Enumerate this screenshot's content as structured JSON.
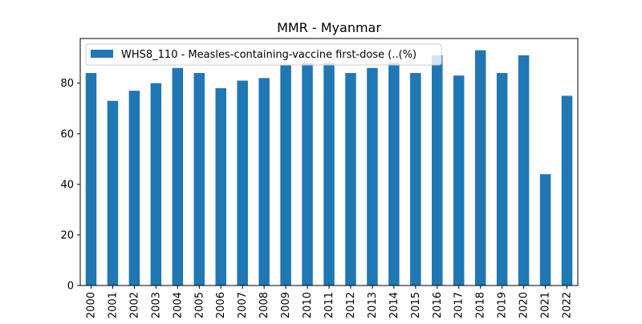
{
  "chart_data": {
    "type": "bar",
    "title": "MMR - Myanmar",
    "xlabel": "",
    "ylabel": "",
    "categories": [
      "2000",
      "2001",
      "2002",
      "2003",
      "2004",
      "2005",
      "2006",
      "2007",
      "2008",
      "2009",
      "2010",
      "2011",
      "2012",
      "2013",
      "2014",
      "2015",
      "2016",
      "2017",
      "2018",
      "2019",
      "2020",
      "2021",
      "2022"
    ],
    "series": [
      {
        "name": "WHS8_110 - Measles-containing-vaccine first-dose (..(%)",
        "values": [
          84,
          73,
          77,
          80,
          86,
          84,
          78,
          81,
          82,
          87,
          88,
          88,
          84,
          86,
          88,
          84,
          91,
          83,
          93,
          84,
          91,
          44,
          75
        ],
        "color": "#1f77b4"
      }
    ],
    "ylim": [
      0,
      97.65
    ],
    "yticks": [
      0,
      20,
      40,
      60,
      80
    ],
    "grid": false,
    "legend_position": "top-left"
  }
}
